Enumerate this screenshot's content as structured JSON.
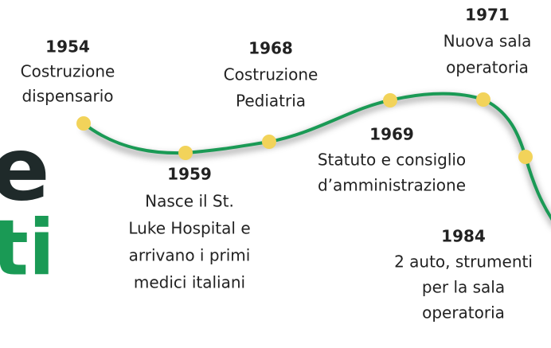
{
  "fragments": [
    "e",
    "ti"
  ],
  "events": [
    {
      "year": "1954",
      "lines": [
        "Costruzione",
        "dispensario"
      ]
    },
    {
      "year": "1959",
      "lines": [
        "Nasce il St.",
        "Luke Hospital e",
        "arrivano i primi",
        "medici italiani"
      ]
    },
    {
      "year": "1968",
      "lines": [
        "Costruzione",
        "Pediatria"
      ]
    },
    {
      "year": "1969",
      "lines": [
        "Statuto e consiglio",
        "d’amministrazione"
      ]
    },
    {
      "year": "1971",
      "lines": [
        "Nuova sala",
        "operatoria"
      ]
    },
    {
      "year": "1984",
      "lines": [
        "2 auto, strumenti",
        "per la sala",
        "operatoria"
      ]
    }
  ]
}
